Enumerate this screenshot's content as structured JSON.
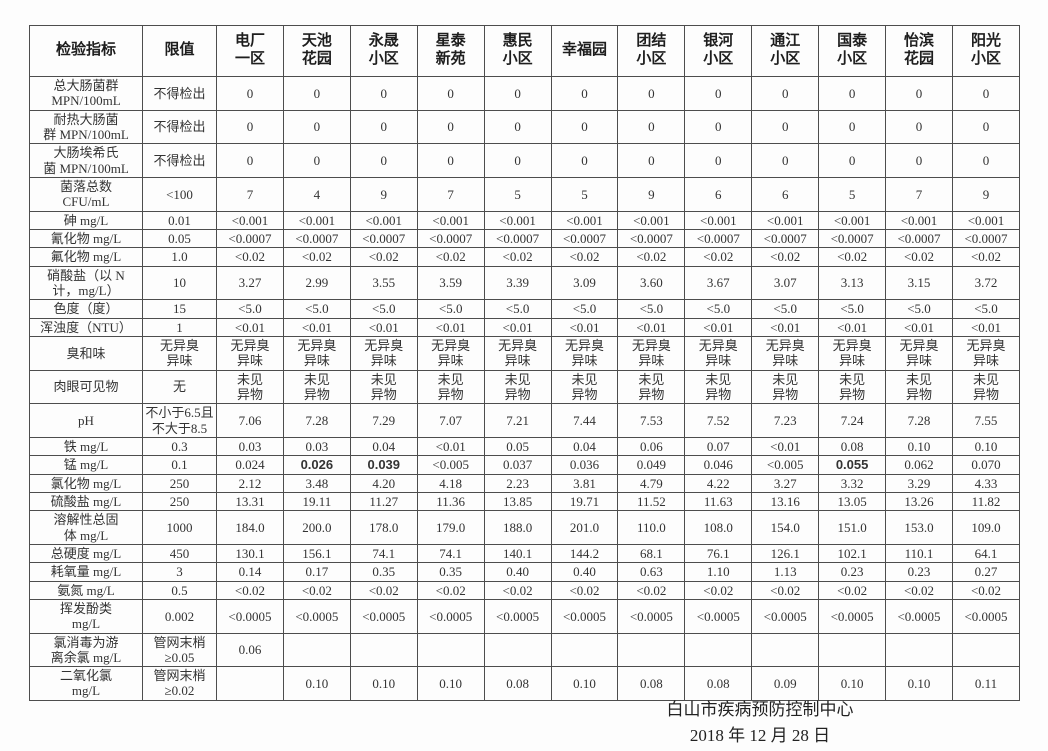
{
  "header": {
    "indicator": "检验指标",
    "limit": "限值",
    "sites": [
      "电厂\n一区",
      "天池\n花园",
      "永晟\n小区",
      "星泰\n新苑",
      "惠民\n小区",
      "幸福园",
      "团结\n小区",
      "银河\n小区",
      "通江\n小区",
      "国泰\n小区",
      "怡滨\n花园",
      "阳光\n小区"
    ]
  },
  "rows": [
    {
      "indicator": "总大肠菌群\nMPN/100mL",
      "limit": "不得检出",
      "values": [
        "0",
        "0",
        "0",
        "0",
        "0",
        "0",
        "0",
        "0",
        "0",
        "0",
        "0",
        "0"
      ]
    },
    {
      "indicator": "耐热大肠菌\n群 MPN/100mL",
      "limit": "不得检出",
      "values": [
        "0",
        "0",
        "0",
        "0",
        "0",
        "0",
        "0",
        "0",
        "0",
        "0",
        "0",
        "0"
      ]
    },
    {
      "indicator": "大肠埃希氏\n菌 MPN/100mL",
      "limit": "不得检出",
      "values": [
        "0",
        "0",
        "0",
        "0",
        "0",
        "0",
        "0",
        "0",
        "0",
        "0",
        "0",
        "0"
      ]
    },
    {
      "indicator": "菌落总数\nCFU/mL",
      "limit": "<100",
      "values": [
        "7",
        "4",
        "9",
        "7",
        "5",
        "5",
        "9",
        "6",
        "6",
        "5",
        "7",
        "9"
      ]
    },
    {
      "indicator": "砷 mg/L",
      "limit": "0.01",
      "values": [
        "<0.001",
        "<0.001",
        "<0.001",
        "<0.001",
        "<0.001",
        "<0.001",
        "<0.001",
        "<0.001",
        "<0.001",
        "<0.001",
        "<0.001",
        "<0.001"
      ]
    },
    {
      "indicator": "氰化物 mg/L",
      "limit": "0.05",
      "values": [
        "<0.0007",
        "<0.0007",
        "<0.0007",
        "<0.0007",
        "<0.0007",
        "<0.0007",
        "<0.0007",
        "<0.0007",
        "<0.0007",
        "<0.0007",
        "<0.0007",
        "<0.0007"
      ]
    },
    {
      "indicator": "氟化物 mg/L",
      "limit": "1.0",
      "values": [
        "<0.02",
        "<0.02",
        "<0.02",
        "<0.02",
        "<0.02",
        "<0.02",
        "<0.02",
        "<0.02",
        "<0.02",
        "<0.02",
        "<0.02",
        "<0.02"
      ]
    },
    {
      "indicator": "硝酸盐（以 N\n计，mg/L）",
      "limit": "10",
      "values": [
        "3.27",
        "2.99",
        "3.55",
        "3.59",
        "3.39",
        "3.09",
        "3.60",
        "3.67",
        "3.07",
        "3.13",
        "3.15",
        "3.72"
      ]
    },
    {
      "indicator": "色度（度）",
      "limit": "15",
      "values": [
        "<5.0",
        "<5.0",
        "<5.0",
        "<5.0",
        "<5.0",
        "<5.0",
        "<5.0",
        "<5.0",
        "<5.0",
        "<5.0",
        "<5.0",
        "<5.0"
      ]
    },
    {
      "indicator": "浑浊度（NTU）",
      "limit": "1",
      "values": [
        "<0.01",
        "<0.01",
        "<0.01",
        "<0.01",
        "<0.01",
        "<0.01",
        "<0.01",
        "<0.01",
        "<0.01",
        "<0.01",
        "<0.01",
        "<0.01"
      ]
    },
    {
      "indicator": "臭和味",
      "limit": "无异臭\n异味",
      "values": [
        "无异臭\n异味",
        "无异臭\n异味",
        "无异臭\n异味",
        "无异臭\n异味",
        "无异臭\n异味",
        "无异臭\n异味",
        "无异臭\n异味",
        "无异臭\n异味",
        "无异臭\n异味",
        "无异臭\n异味",
        "无异臭\n异味",
        "无异臭\n异味"
      ]
    },
    {
      "indicator": "肉眼可见物",
      "limit": "无",
      "values": [
        "未见\n异物",
        "未见\n异物",
        "未见\n异物",
        "未见\n异物",
        "未见\n异物",
        "未见\n异物",
        "未见\n异物",
        "未见\n异物",
        "未见\n异物",
        "未见\n异物",
        "未见\n异物",
        "未见\n异物"
      ]
    },
    {
      "indicator": "pH",
      "limit": "不小于6.5且\n不大于8.5",
      "limit_small": true,
      "values": [
        "7.06",
        "7.28",
        "7.29",
        "7.07",
        "7.21",
        "7.44",
        "7.53",
        "7.52",
        "7.23",
        "7.24",
        "7.28",
        "7.55"
      ]
    },
    {
      "indicator": "铁 mg/L",
      "limit": "0.3",
      "values": [
        "0.03",
        "0.03",
        "0.04",
        "<0.01",
        "0.05",
        "0.04",
        "0.06",
        "0.07",
        "<0.01",
        "0.08",
        "0.10",
        "0.10"
      ]
    },
    {
      "indicator": "锰 mg/L",
      "limit": "0.1",
      "values": [
        "0.024",
        "0.026",
        "0.039",
        "<0.005",
        "0.037",
        "0.036",
        "0.049",
        "0.046",
        "<0.005",
        "0.055",
        "0.062",
        "0.070"
      ],
      "bold": [
        1,
        2,
        9
      ]
    },
    {
      "indicator": "氯化物 mg/L",
      "limit": "250",
      "values": [
        "2.12",
        "3.48",
        "4.20",
        "4.18",
        "2.23",
        "3.81",
        "4.79",
        "4.22",
        "3.27",
        "3.32",
        "3.29",
        "4.33"
      ]
    },
    {
      "indicator": "硫酸盐 mg/L",
      "limit": "250",
      "values": [
        "13.31",
        "19.11",
        "11.27",
        "11.36",
        "13.85",
        "19.71",
        "11.52",
        "11.63",
        "13.16",
        "13.05",
        "13.26",
        "11.82"
      ]
    },
    {
      "indicator": "溶解性总固\n体 mg/L",
      "limit": "1000",
      "values": [
        "184.0",
        "200.0",
        "178.0",
        "179.0",
        "188.0",
        "201.0",
        "110.0",
        "108.0",
        "154.0",
        "151.0",
        "153.0",
        "109.0"
      ]
    },
    {
      "indicator": "总硬度 mg/L",
      "limit": "450",
      "values": [
        "130.1",
        "156.1",
        "74.1",
        "74.1",
        "140.1",
        "144.2",
        "68.1",
        "76.1",
        "126.1",
        "102.1",
        "110.1",
        "64.1"
      ]
    },
    {
      "indicator": "耗氧量 mg/L",
      "limit": "3",
      "values": [
        "0.14",
        "0.17",
        "0.35",
        "0.35",
        "0.40",
        "0.40",
        "0.63",
        "1.10",
        "1.13",
        "0.23",
        "0.23",
        "0.27"
      ]
    },
    {
      "indicator": "氨氮 mg/L",
      "limit": "0.5",
      "values": [
        "<0.02",
        "<0.02",
        "<0.02",
        "<0.02",
        "<0.02",
        "<0.02",
        "<0.02",
        "<0.02",
        "<0.02",
        "<0.02",
        "<0.02",
        "<0.02"
      ]
    },
    {
      "indicator": "挥发酚类\nmg/L",
      "limit": "0.002",
      "values": [
        "<0.0005",
        "<0.0005",
        "<0.0005",
        "<0.0005",
        "<0.0005",
        "<0.0005",
        "<0.0005",
        "<0.0005",
        "<0.0005",
        "<0.0005",
        "<0.0005",
        "<0.0005"
      ]
    },
    {
      "indicator": "氯消毒为游\n离余氯 mg/L",
      "limit": "管网末梢\n≥0.05",
      "limit_small": true,
      "values": [
        "0.06",
        "",
        "",
        "",
        "",
        "",
        "",
        "",
        "",
        "",
        "",
        ""
      ]
    },
    {
      "indicator": "二氧化氯\nmg/L",
      "limit": "管网末梢\n≥0.02",
      "limit_small": true,
      "values": [
        "",
        "0.10",
        "0.10",
        "0.10",
        "0.08",
        "0.10",
        "0.08",
        "0.08",
        "0.09",
        "0.10",
        "0.10",
        "0.11"
      ]
    }
  ],
  "footer": {
    "org": "白山市疾病预防控制中心",
    "date": "2018 年 12 月 28 日"
  }
}
